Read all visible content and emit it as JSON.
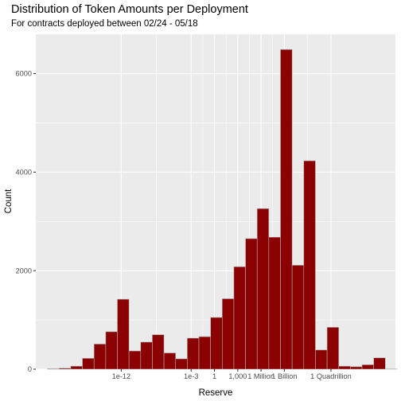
{
  "chart_data": {
    "type": "bar",
    "title": "Distribution of Token Amounts per Deployment",
    "subtitle": "For contracts deployed between 02/24 - 05/18",
    "xlabel": "Reserve",
    "ylabel": "Count",
    "x_scale": "log10",
    "xlim": [
      -23,
      23.3
    ],
    "ylim": [
      0,
      6800
    ],
    "grid": true,
    "x_ticks": [
      {
        "value": -12,
        "label": "1e-12"
      },
      {
        "value": -3,
        "label": "1e-3"
      },
      {
        "value": 0,
        "label": "1"
      },
      {
        "value": 3,
        "label": "1,000"
      },
      {
        "value": 6,
        "label": "1 Million"
      },
      {
        "value": 9,
        "label": "1 Billion"
      },
      {
        "value": 15,
        "label": "1 Quadrillion"
      }
    ],
    "y_ticks": [
      0,
      2000,
      4000,
      6000
    ],
    "y_tick_labels": [
      "0",
      "2000",
      "4000",
      "6000"
    ],
    "bin_width": 1.5,
    "bins_start": [
      -21.5,
      -20,
      -18.5,
      -17,
      -15.5,
      -14,
      -12.5,
      -11,
      -9.5,
      -8,
      -6.5,
      -5,
      -3.5,
      -2,
      -0.5,
      1,
      2.5,
      4,
      5.5,
      7,
      8.5,
      10,
      11.5,
      13,
      14.5,
      16,
      17.5,
      19,
      20.5,
      22
    ],
    "values": [
      10,
      20,
      60,
      220,
      510,
      760,
      1420,
      370,
      550,
      700,
      330,
      210,
      630,
      660,
      1050,
      1430,
      2080,
      2650,
      3260,
      2680,
      6490,
      2110,
      4230,
      390,
      850,
      60,
      50,
      90,
      230,
      5
    ]
  }
}
